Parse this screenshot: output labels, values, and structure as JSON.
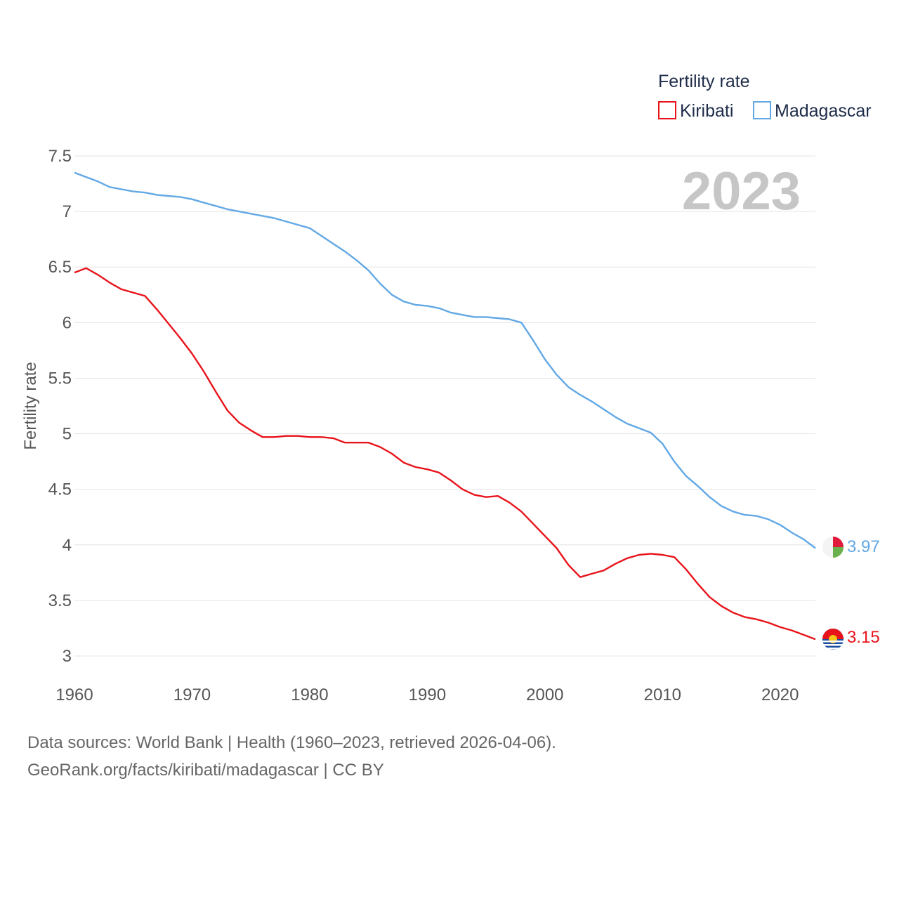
{
  "chart_data": {
    "type": "line",
    "ylabel": "Fertility rate",
    "xlabel": "",
    "xlim": [
      1960,
      2023
    ],
    "ylim": [
      3,
      7.5
    ],
    "x_ticks": [
      1960,
      1970,
      1980,
      1990,
      2000,
      2010,
      2020
    ],
    "y_ticks": [
      3,
      3.5,
      4,
      4.5,
      5,
      5.5,
      6,
      6.5,
      7,
      7.5
    ],
    "y_tick_labels": [
      "3",
      "3.5",
      "4",
      "4.5",
      "5",
      "5.5",
      "6",
      "6.5",
      "7",
      "7.5"
    ],
    "x_tick_labels": [
      "1960",
      "1970",
      "1980",
      "1990",
      "2000",
      "2010",
      "2020"
    ],
    "grid": true,
    "legend": {
      "title": "Fertility rate",
      "position": "top-right",
      "entries": [
        "Kiribati",
        "Madagascar"
      ]
    },
    "year_watermark": "2023",
    "x": [
      1960,
      1961,
      1962,
      1963,
      1964,
      1965,
      1966,
      1967,
      1968,
      1969,
      1970,
      1971,
      1972,
      1973,
      1974,
      1975,
      1976,
      1977,
      1978,
      1979,
      1980,
      1981,
      1982,
      1983,
      1984,
      1985,
      1986,
      1987,
      1988,
      1989,
      1990,
      1991,
      1992,
      1993,
      1994,
      1995,
      1996,
      1997,
      1998,
      1999,
      2000,
      2001,
      2002,
      2003,
      2004,
      2005,
      2006,
      2007,
      2008,
      2009,
      2010,
      2011,
      2012,
      2013,
      2014,
      2015,
      2016,
      2017,
      2018,
      2019,
      2020,
      2021,
      2022,
      2023
    ],
    "series": [
      {
        "name": "Kiribati",
        "color": "#e8141b",
        "end_label": "3.15",
        "values": [
          6.45,
          6.49,
          6.43,
          6.36,
          6.3,
          6.27,
          6.24,
          6.12,
          5.99,
          5.86,
          5.72,
          5.56,
          5.38,
          5.21,
          5.1,
          5.03,
          4.97,
          4.97,
          4.98,
          4.98,
          4.97,
          4.97,
          4.96,
          4.92,
          4.92,
          4.92,
          4.88,
          4.82,
          4.74,
          4.7,
          4.68,
          4.65,
          4.58,
          4.5,
          4.45,
          4.43,
          4.44,
          4.38,
          4.3,
          4.19,
          4.08,
          3.97,
          3.82,
          3.71,
          3.74,
          3.77,
          3.83,
          3.88,
          3.91,
          3.92,
          3.91,
          3.89,
          3.78,
          3.65,
          3.53,
          3.45,
          3.39,
          3.35,
          3.33,
          3.3,
          3.26,
          3.23,
          3.19,
          3.15
        ]
      },
      {
        "name": "Madagascar",
        "color": "#62a8e5",
        "end_label": "3.97",
        "values": [
          7.35,
          7.31,
          7.27,
          7.22,
          7.2,
          7.18,
          7.17,
          7.15,
          7.14,
          7.13,
          7.11,
          7.08,
          7.05,
          7.02,
          7.0,
          6.98,
          6.96,
          6.94,
          6.91,
          6.88,
          6.85,
          6.78,
          6.71,
          6.64,
          6.56,
          6.47,
          6.35,
          6.25,
          6.19,
          6.16,
          6.15,
          6.13,
          6.09,
          6.07,
          6.05,
          6.05,
          6.04,
          6.03,
          6.0,
          5.84,
          5.67,
          5.53,
          5.42,
          5.35,
          5.29,
          5.22,
          5.15,
          5.09,
          5.05,
          5.01,
          4.91,
          4.75,
          4.62,
          4.53,
          4.43,
          4.35,
          4.3,
          4.27,
          4.26,
          4.23,
          4.18,
          4.11,
          4.05,
          3.97
        ]
      }
    ]
  },
  "footer": {
    "source": "Data sources: World Bank | Health (1960–2023, retrieved 2026-04-06).",
    "credit": "GeoRank.org/facts/kiribati/madagascar | CC BY"
  }
}
